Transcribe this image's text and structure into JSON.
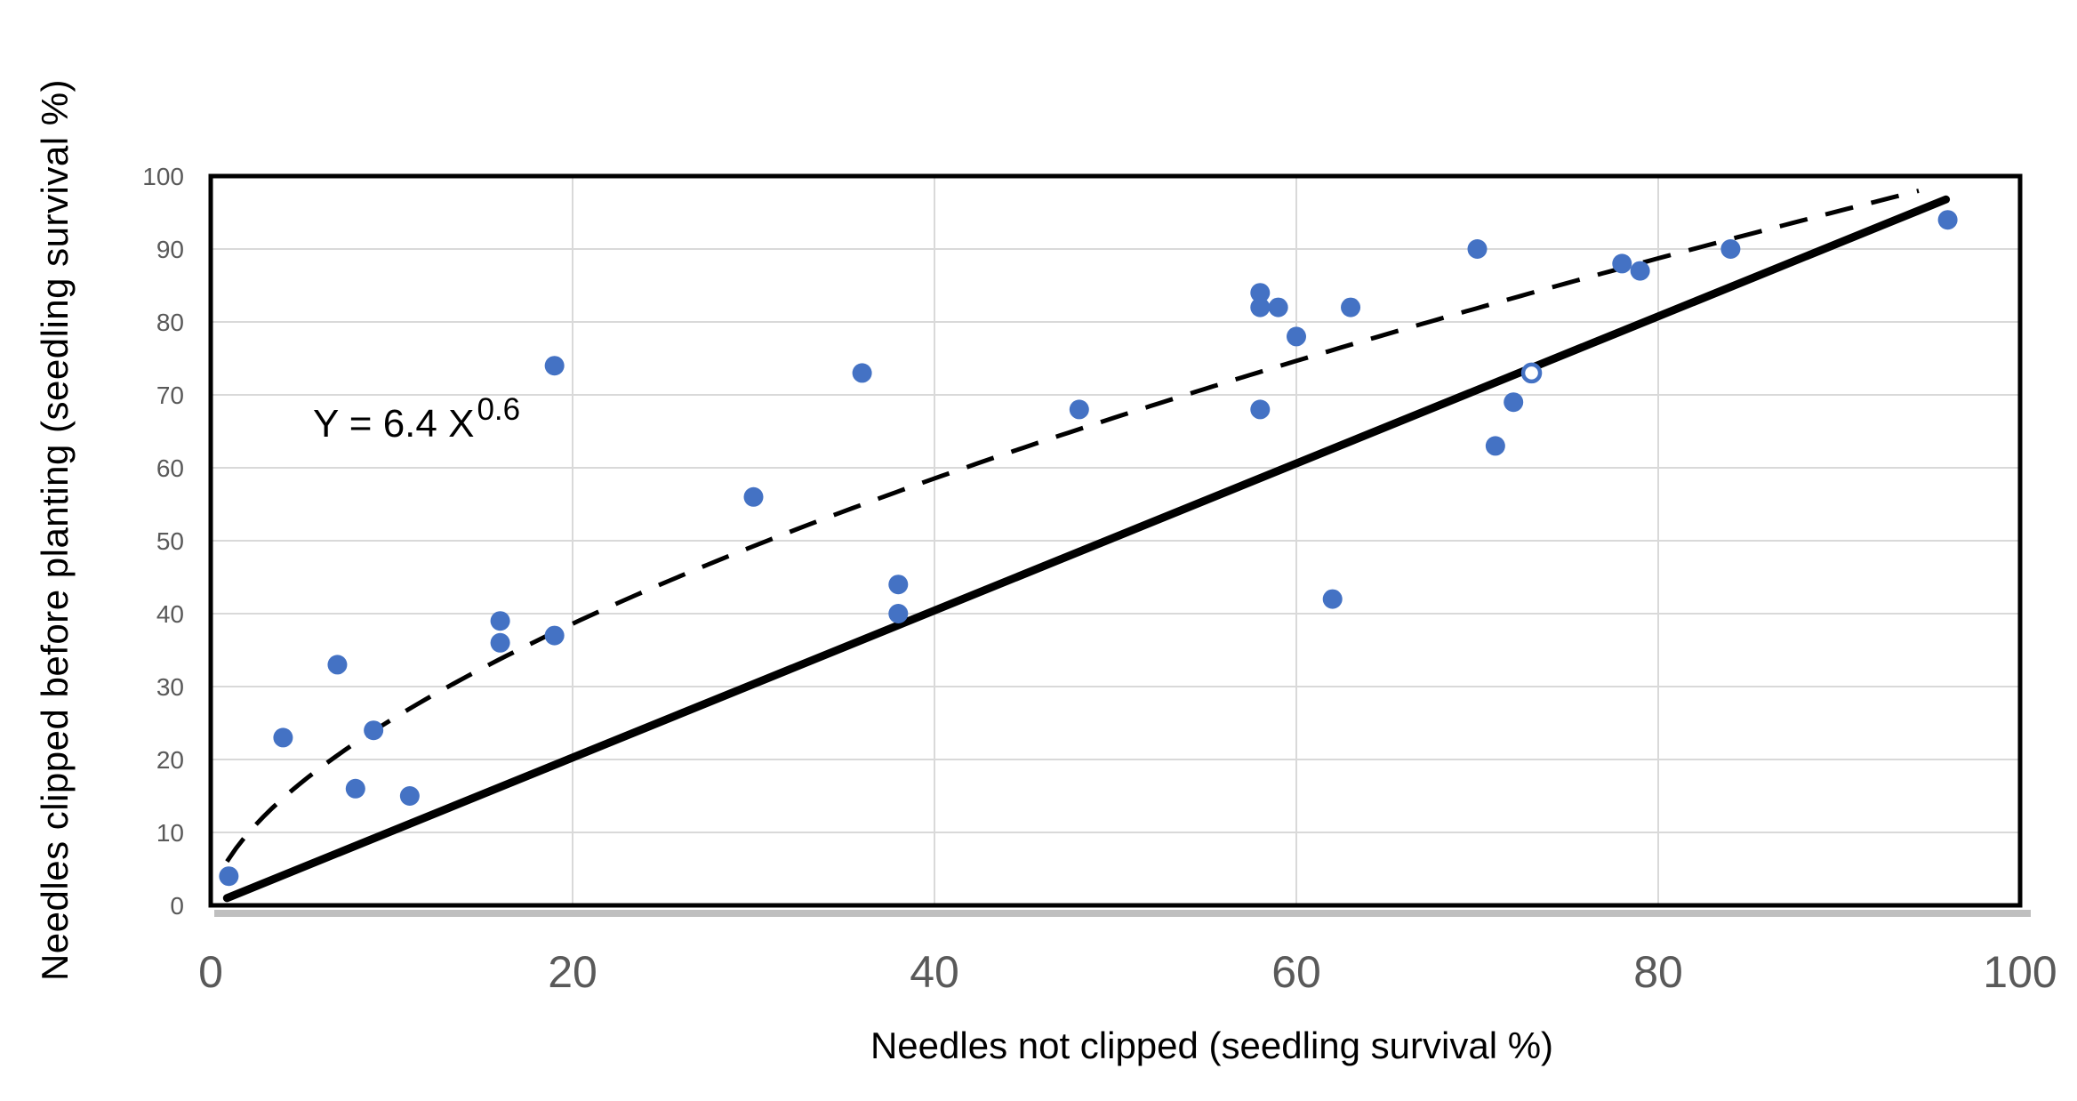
{
  "chart_data": {
    "type": "scatter",
    "title": "",
    "xlabel": "Needles not clipped (seedling survival %)",
    "ylabel": "Needles clipped before planting (seedling survival %)",
    "xlim": [
      0,
      100
    ],
    "ylim": [
      0,
      100
    ],
    "x_ticks": [
      0,
      20,
      40,
      60,
      80,
      100
    ],
    "y_ticks": [
      0,
      10,
      20,
      30,
      40,
      50,
      60,
      70,
      80,
      90,
      100
    ],
    "grid": true,
    "legend": "none",
    "points": [
      [
        1,
        4
      ],
      [
        4,
        23
      ],
      [
        7,
        33
      ],
      [
        8,
        16
      ],
      [
        9,
        24
      ],
      [
        11,
        15
      ],
      [
        16,
        36
      ],
      [
        16,
        39
      ],
      [
        19,
        37
      ],
      [
        19,
        74
      ],
      [
        30,
        56
      ],
      [
        36,
        73
      ],
      [
        38,
        40
      ],
      [
        38,
        44
      ],
      [
        48,
        68
      ],
      [
        58,
        68
      ],
      [
        58,
        82
      ],
      [
        58,
        84
      ],
      [
        59,
        82
      ],
      [
        60,
        78
      ],
      [
        62,
        42
      ],
      [
        63,
        82
      ],
      [
        70,
        90
      ],
      [
        71,
        63
      ],
      [
        72,
        69
      ],
      [
        78,
        88
      ],
      [
        79,
        87
      ],
      [
        84,
        90
      ],
      [
        96,
        94
      ]
    ],
    "open_points": [
      [
        73,
        73
      ]
    ],
    "trendline": {
      "type": "power",
      "equation_label": "Y = 6.4 X^0.6",
      "a": 6.4,
      "b": 0.6,
      "x_start": 0.9,
      "x_end": 94.8,
      "style": "dashed"
    },
    "reference_line": {
      "x1": 0.9,
      "y1": 1.0,
      "x2": 95.9,
      "y2": 96.8,
      "style": "solid"
    },
    "annotation": {
      "base": "Y = 6.4 X",
      "exponent": "0.6"
    },
    "colors": {
      "point": "#4472C4",
      "line": "#000000",
      "grid": "#D9D9D9",
      "tick_label": "#595959",
      "axis_title": "#000000",
      "axis_shadow": "#BFBFBF",
      "background": "#FFFFFF"
    }
  }
}
